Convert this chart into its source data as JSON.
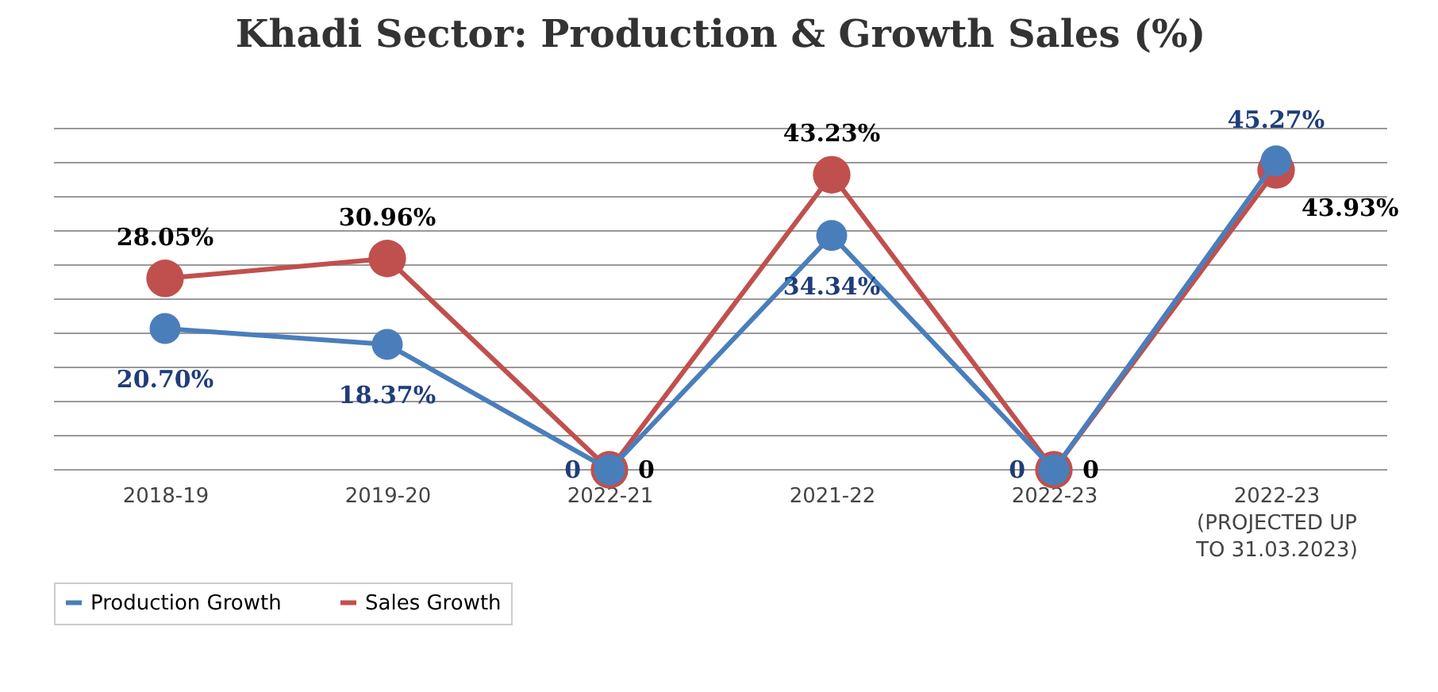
{
  "chart_data": {
    "type": "line",
    "title": "Khadi Sector: Production & Growth Sales (%)",
    "categories": [
      "2018-19",
      "2019-20",
      "2022-21",
      "2021-22",
      "2022-23",
      "2022-23 (PROJECTED UP TO 31.03.2023)"
    ],
    "series": [
      {
        "name": "Production Growth",
        "color": "#4a7ebb",
        "values": [
          20.7,
          18.37,
          0,
          34.34,
          0,
          45.27
        ],
        "value_labels": [
          "20.70%",
          "18.37%",
          "0",
          "34.34%",
          "0",
          "45.27%"
        ]
      },
      {
        "name": "Sales Growth",
        "color": "#c0504d",
        "values": [
          28.05,
          30.96,
          0,
          43.23,
          0,
          43.93
        ],
        "value_labels": [
          "28.05%",
          "30.96%",
          "0",
          "43.23%",
          "0",
          "43.93%"
        ]
      }
    ],
    "ylim": [
      0,
      50
    ],
    "yticks": [
      {
        "value": 0,
        "label": null
      },
      {
        "value": 5,
        "label": null
      },
      {
        "value": 10,
        "label": null
      },
      {
        "value": 15,
        "label": null
      },
      {
        "value": 20,
        "label": null
      },
      {
        "value": 25,
        "label": null
      },
      {
        "value": 30,
        "label": null
      },
      {
        "value": 35,
        "label": null
      },
      {
        "value": 40,
        "label": null
      },
      {
        "value": 45,
        "label": null
      },
      {
        "value": 50,
        "label": null
      }
    ],
    "grid": "y",
    "legend": "bottom",
    "marker": "circle",
    "tick_labels": "x"
  }
}
